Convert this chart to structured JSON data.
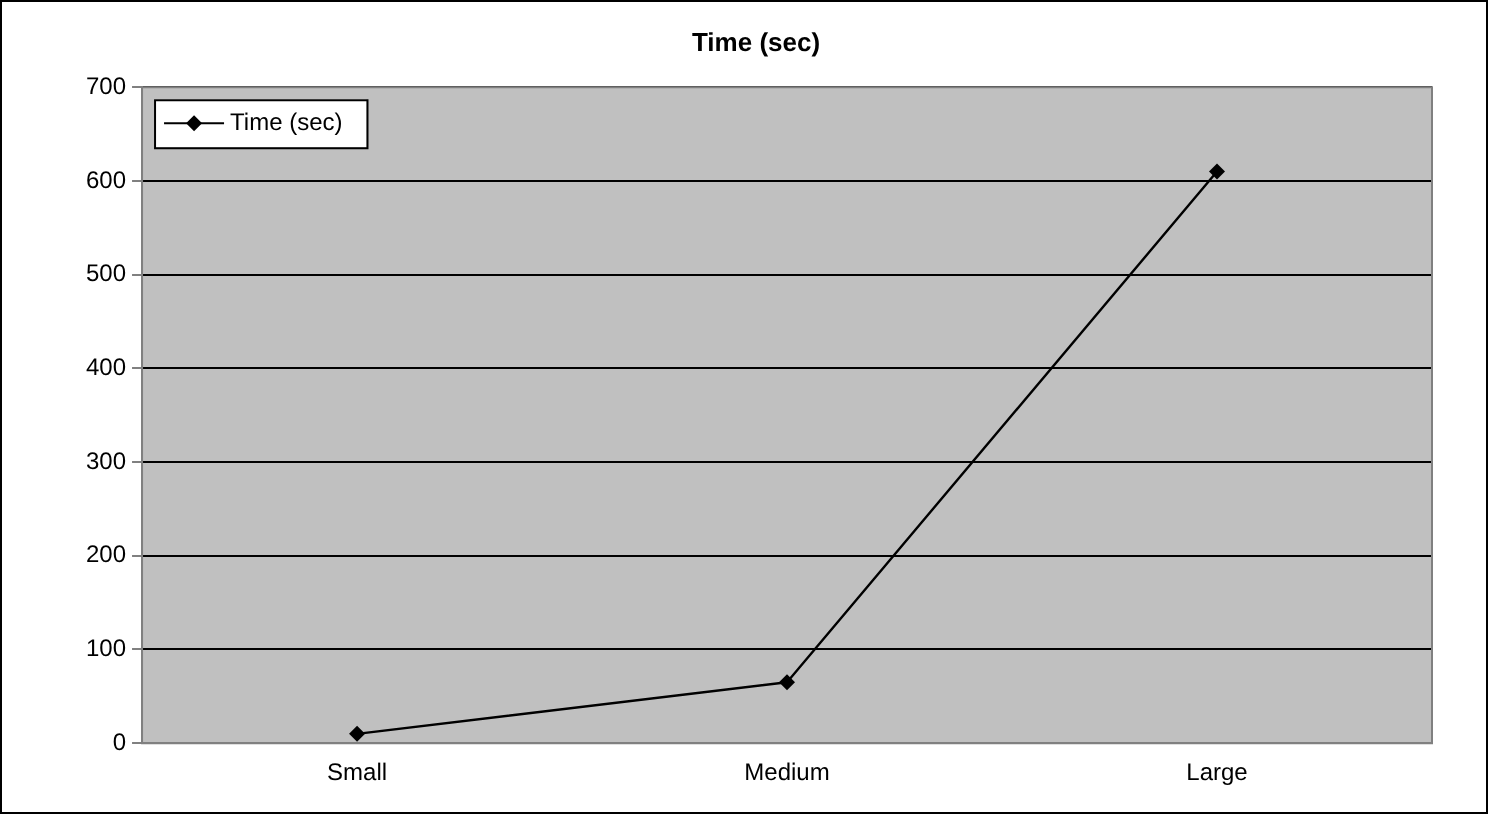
{
  "chart_data": {
    "type": "line",
    "title": "Time (sec)",
    "categories": [
      "Small",
      "Medium",
      "Large"
    ],
    "series": [
      {
        "name": "Time (sec)",
        "color": "#000000",
        "values": [
          10,
          65,
          610
        ]
      }
    ],
    "ylim": [
      0,
      700
    ],
    "yticks": [
      0,
      100,
      200,
      300,
      400,
      500,
      600,
      700
    ],
    "grid": "y",
    "legend": "top left",
    "marker": "diamond",
    "line_style": "solid"
  }
}
